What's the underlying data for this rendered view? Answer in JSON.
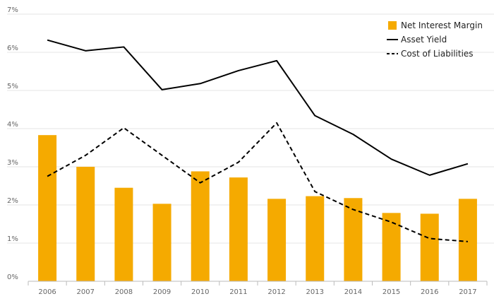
{
  "chart_data": {
    "type": "bar",
    "categories": [
      "2006",
      "2007",
      "2008",
      "2009",
      "2010",
      "2011",
      "2012",
      "2013",
      "2014",
      "2015",
      "2016",
      "2017"
    ],
    "series": [
      {
        "name": "Net Interest Margin",
        "kind": "bar",
        "color": "#F5AA00",
        "values": [
          3.83,
          3.0,
          2.45,
          2.03,
          2.88,
          2.72,
          2.16,
          2.23,
          2.18,
          1.79,
          1.77,
          2.16
        ]
      },
      {
        "name": "Asset Yield",
        "kind": "line",
        "dash": "solid",
        "color": "#000000",
        "values": [
          6.32,
          6.04,
          6.14,
          5.02,
          5.18,
          5.52,
          5.78,
          4.34,
          3.85,
          3.2,
          2.78,
          3.08
        ]
      },
      {
        "name": "Cost of Liabilities",
        "kind": "line",
        "dash": "dashed",
        "color": "#000000",
        "values": [
          2.75,
          3.3,
          4.02,
          3.3,
          2.58,
          3.12,
          4.15,
          2.35,
          1.88,
          1.55,
          1.12,
          1.04
        ]
      }
    ],
    "yticks": [
      "0%",
      "1%",
      "2%",
      "3%",
      "4%",
      "5%",
      "6%",
      "7%"
    ],
    "ylim": [
      0,
      7
    ],
    "grid": true,
    "legend_position": "top-right",
    "title": "",
    "xlabel": "",
    "ylabel": ""
  }
}
